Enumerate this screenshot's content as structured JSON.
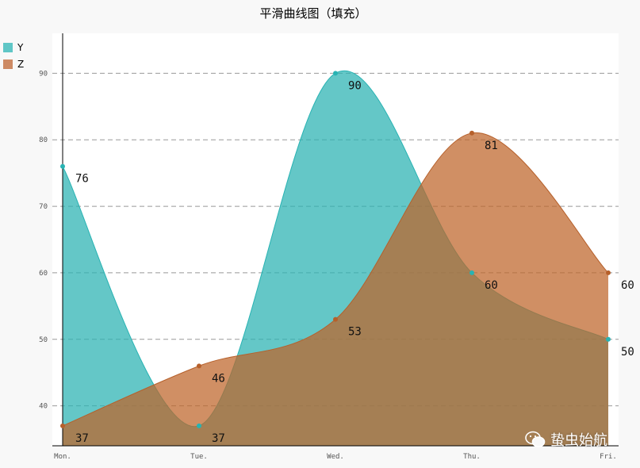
{
  "chart_data": {
    "type": "area",
    "title": "平滑曲线图（填充）",
    "categories": [
      "Mon.",
      "Tue.",
      "Wed.",
      "Thu.",
      "Fri."
    ],
    "series": [
      {
        "name": "Y",
        "values": [
          76,
          37,
          90,
          60,
          50
        ],
        "color": "#28b3b3",
        "fill": "rgba(40,178,178,0.72)"
      },
      {
        "name": "Z",
        "values": [
          37,
          46,
          53,
          81,
          60
        ],
        "color": "#b6602b",
        "fill": "rgba(190,100,40,0.72)"
      }
    ],
    "y_ticks": [
      40,
      50,
      60,
      70,
      80,
      90
    ],
    "ylim": [
      34,
      96
    ],
    "smooth": true,
    "grid": "horizontal-dashed",
    "legend_position": "top-left",
    "value_labels": true
  },
  "watermark": {
    "text": "蛰虫始航"
  }
}
